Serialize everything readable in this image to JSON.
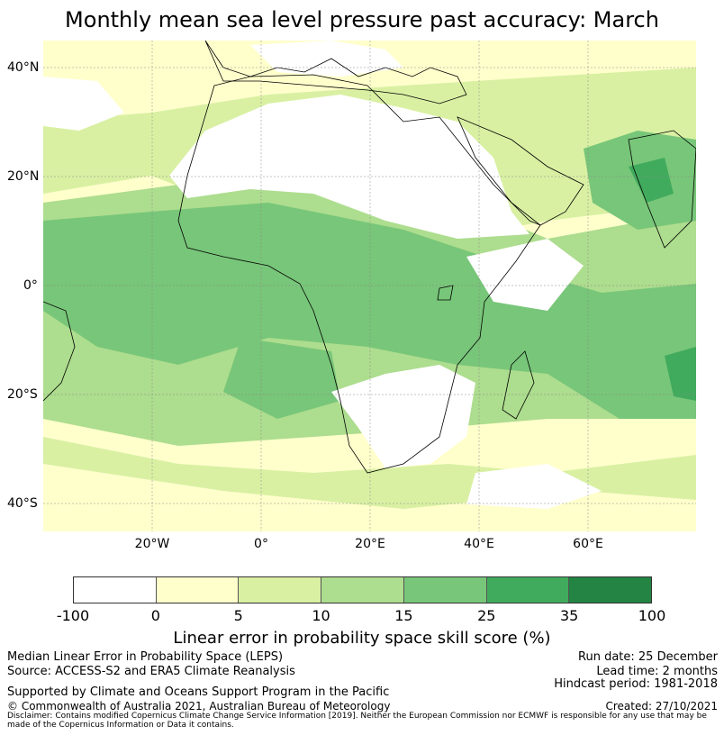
{
  "title": "Monthly mean sea level pressure past accuracy: March",
  "map": {
    "region": "Africa, Atlantic and western Indian Ocean",
    "lat_labels": [
      "40°N",
      "20°N",
      "0°",
      "20°S",
      "40°S"
    ],
    "lon_labels": [
      "20°W",
      "0°",
      "20°E",
      "40°E",
      "60°E"
    ],
    "colors": {
      "ocean_low": "#ffffcc",
      "light_green": "#d9f0a3",
      "mid_green": "#addd8e",
      "green": "#78c679",
      "dark_green": "#41ab5d",
      "deep_green": "#238443",
      "no_skill": "#ffffff"
    }
  },
  "colorbar": {
    "bins": [
      {
        "from": -100,
        "to": 0,
        "color": "#ffffff"
      },
      {
        "from": 0,
        "to": 5,
        "color": "#ffffcc"
      },
      {
        "from": 5,
        "to": 10,
        "color": "#d9f0a3"
      },
      {
        "from": 10,
        "to": 15,
        "color": "#addd8e"
      },
      {
        "from": 15,
        "to": 25,
        "color": "#78c679"
      },
      {
        "from": 25,
        "to": 35,
        "color": "#41ab5d"
      },
      {
        "from": 35,
        "to": 100,
        "color": "#238443"
      }
    ],
    "labels": [
      "-100",
      "0",
      "5",
      "10",
      "15",
      "25",
      "35",
      "100"
    ],
    "title": "Linear error in probability space skill score (%)"
  },
  "footer": {
    "left1": "Median Linear Error in Probability Space (LEPS)",
    "left2": "Source: ACCESS-S2 and ERA5 Climate Reanalysis",
    "left3": "Supported by Climate and Oceans Support Program in the Pacific",
    "left4": "© Commonwealth of Australia 2021, Australian Bureau of Meteorology",
    "right1": "Run date: 25 December",
    "right2": "Lead time: 2 months",
    "right3": "Hindcast period: 1981-2018",
    "right4": "Created: 27/10/2021",
    "disclaimer": "Disclaimer: Contains modified Copernicus Climate Change Service Information [2019]. Neither the European Commission nor ECMWF is responsible for any use that may be made of the Copernicus Information or Data it contains."
  }
}
